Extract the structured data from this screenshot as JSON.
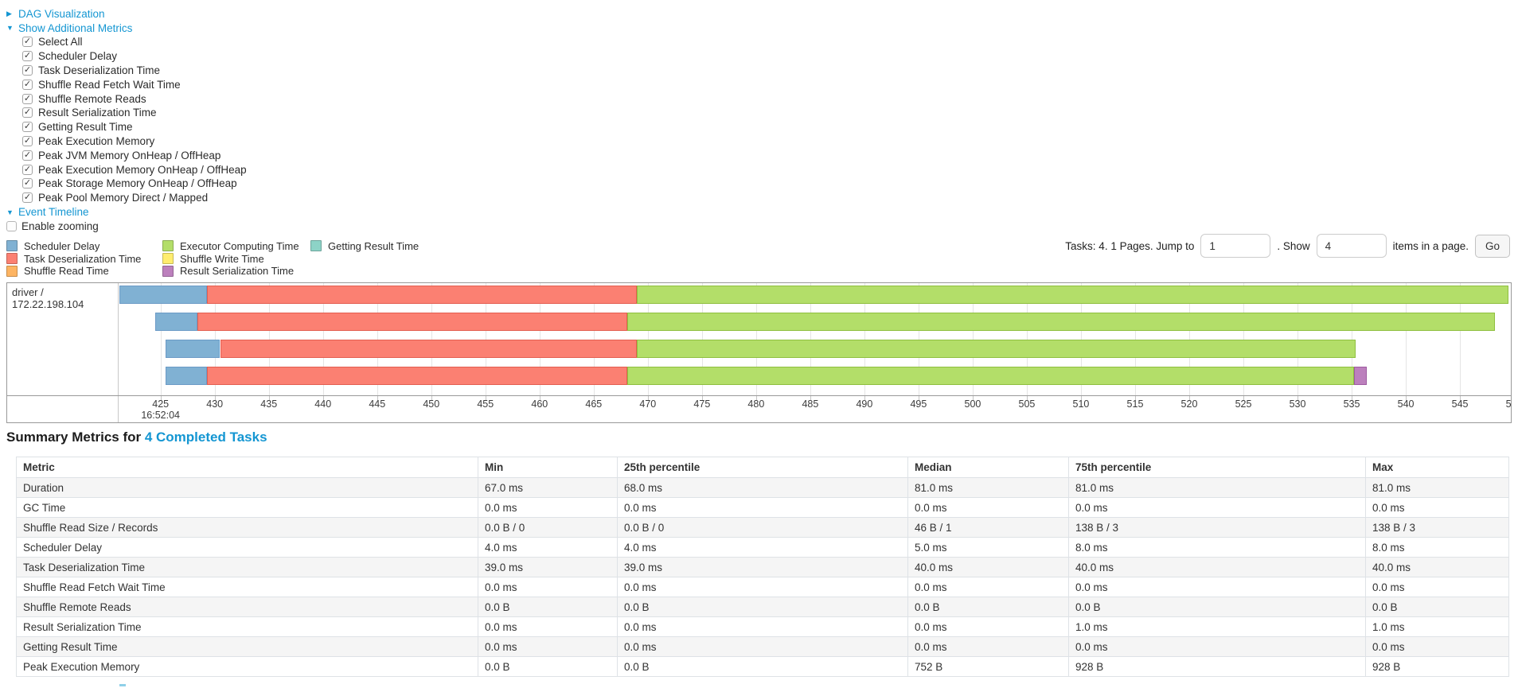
{
  "colors": {
    "link": "#1496d2",
    "chart_border": "#999999",
    "gridline": "#e5e5e5"
  },
  "segment_styles": {
    "scheduler-delay": {
      "fill": "#80B1D3",
      "border": "#6B9AC6"
    },
    "task-deserialization": {
      "fill": "#FB8072",
      "border": "#E35E50"
    },
    "shuffle-read": {
      "fill": "#FDB462",
      "border": "#E89A3E"
    },
    "executor-computing": {
      "fill": "#B3DE69",
      "border": "#8FBF3F"
    },
    "shuffle-write": {
      "fill": "#FFED6F",
      "border": "#E0CC45"
    },
    "result-serialization": {
      "fill": "#BC80BD",
      "border": "#9E5BA0"
    },
    "getting-result": {
      "fill": "#8DD3C7",
      "border": "#63B7A7"
    }
  },
  "collapsibles": {
    "dag": {
      "caret": "▶",
      "label": "DAG Visualization"
    },
    "metrics": {
      "caret": "▼",
      "label": "Show Additional Metrics"
    },
    "timeline": {
      "caret": "▼",
      "label": "Event Timeline"
    }
  },
  "metrics_panel": {
    "items": [
      {
        "label": "Select All",
        "checked": true
      },
      {
        "label": "Scheduler Delay",
        "checked": true
      },
      {
        "label": "Task Deserialization Time",
        "checked": true
      },
      {
        "label": "Shuffle Read Fetch Wait Time",
        "checked": true
      },
      {
        "label": "Shuffle Remote Reads",
        "checked": true
      },
      {
        "label": "Result Serialization Time",
        "checked": true
      },
      {
        "label": "Getting Result Time",
        "checked": true
      },
      {
        "label": "Peak Execution Memory",
        "checked": true
      },
      {
        "label": "Peak JVM Memory OnHeap / OffHeap",
        "checked": true
      },
      {
        "label": "Peak Execution Memory OnHeap / OffHeap",
        "checked": true
      },
      {
        "label": "Peak Storage Memory OnHeap / OffHeap",
        "checked": true
      },
      {
        "label": "Peak Pool Memory Direct / Mapped",
        "checked": true
      }
    ]
  },
  "enable_zooming": {
    "label": "Enable zooming",
    "checked": false
  },
  "pagination": {
    "tasks_text": "Tasks: 4. 1 Pages. Jump to",
    "jump_value": "1",
    "show_text": ". Show",
    "show_value": "4",
    "items_text": "items in a page.",
    "go_label": "Go"
  },
  "legend": {
    "columns": [
      [
        {
          "label": "Scheduler Delay",
          "key": "scheduler-delay"
        },
        {
          "label": "Task Deserialization Time",
          "key": "task-deserialization"
        },
        {
          "label": "Shuffle Read Time",
          "key": "shuffle-read"
        }
      ],
      [
        {
          "label": "Executor Computing Time",
          "key": "executor-computing"
        },
        {
          "label": "Shuffle Write Time",
          "key": "shuffle-write"
        },
        {
          "label": "Result Serialization Time",
          "key": "result-serialization"
        }
      ],
      [
        {
          "label": "Getting Result Time",
          "key": "getting-result"
        }
      ]
    ]
  },
  "chart_data": {
    "type": "timeline",
    "row_label": "driver / 172.22.198.104",
    "x_axis": {
      "start_label": "16:52:04",
      "tick_start": 425,
      "tick_end": 550,
      "tick_step": 5,
      "domain": [
        421.2,
        549.7
      ],
      "unit": "ms after 16:52:04"
    },
    "tasks": [
      {
        "segments": [
          {
            "name": "scheduler-delay",
            "start": 421.2,
            "end": 429.3
          },
          {
            "name": "task-deserialization",
            "start": 429.3,
            "end": 469.0
          },
          {
            "name": "executor-computing",
            "start": 469.0,
            "end": 549.5
          }
        ]
      },
      {
        "segments": [
          {
            "name": "scheduler-delay",
            "start": 424.5,
            "end": 428.4
          },
          {
            "name": "task-deserialization",
            "start": 428.4,
            "end": 468.1
          },
          {
            "name": "executor-computing",
            "start": 468.1,
            "end": 548.2
          }
        ]
      },
      {
        "segments": [
          {
            "name": "scheduler-delay",
            "start": 425.5,
            "end": 430.5
          },
          {
            "name": "task-deserialization",
            "start": 430.5,
            "end": 469.0
          },
          {
            "name": "executor-computing",
            "start": 469.0,
            "end": 535.4
          }
        ]
      },
      {
        "segments": [
          {
            "name": "scheduler-delay",
            "start": 425.5,
            "end": 429.3
          },
          {
            "name": "task-deserialization",
            "start": 429.3,
            "end": 468.1
          },
          {
            "name": "executor-computing",
            "start": 468.1,
            "end": 535.2
          },
          {
            "name": "result-serialization",
            "start": 535.2,
            "end": 536.4
          }
        ]
      }
    ]
  },
  "summary_table": {
    "heading_prefix": "Summary Metrics for ",
    "heading_link": "4 Completed Tasks",
    "columns": [
      "Metric",
      "Min",
      "25th percentile",
      "Median",
      "75th percentile",
      "Max"
    ],
    "rows": [
      [
        "Duration",
        "67.0 ms",
        "68.0 ms",
        "81.0 ms",
        "81.0 ms",
        "81.0 ms"
      ],
      [
        "GC Time",
        "0.0 ms",
        "0.0 ms",
        "0.0 ms",
        "0.0 ms",
        "0.0 ms"
      ],
      [
        "Shuffle Read Size / Records",
        "0.0 B / 0",
        "0.0 B / 0",
        "46 B / 1",
        "138 B / 3",
        "138 B / 3"
      ],
      [
        "Scheduler Delay",
        "4.0 ms",
        "4.0 ms",
        "5.0 ms",
        "8.0 ms",
        "8.0 ms"
      ],
      [
        "Task Deserialization Time",
        "39.0 ms",
        "39.0 ms",
        "40.0 ms",
        "40.0 ms",
        "40.0 ms"
      ],
      [
        "Shuffle Read Fetch Wait Time",
        "0.0 ms",
        "0.0 ms",
        "0.0 ms",
        "0.0 ms",
        "0.0 ms"
      ],
      [
        "Shuffle Remote Reads",
        "0.0 B",
        "0.0 B",
        "0.0 B",
        "0.0 B",
        "0.0 B"
      ],
      [
        "Result Serialization Time",
        "0.0 ms",
        "0.0 ms",
        "0.0 ms",
        "1.0 ms",
        "1.0 ms"
      ],
      [
        "Getting Result Time",
        "0.0 ms",
        "0.0 ms",
        "0.0 ms",
        "0.0 ms",
        "0.0 ms"
      ],
      [
        "Peak Execution Memory",
        "0.0 B",
        "0.0 B",
        "752 B",
        "928 B",
        "928 B"
      ]
    ]
  }
}
